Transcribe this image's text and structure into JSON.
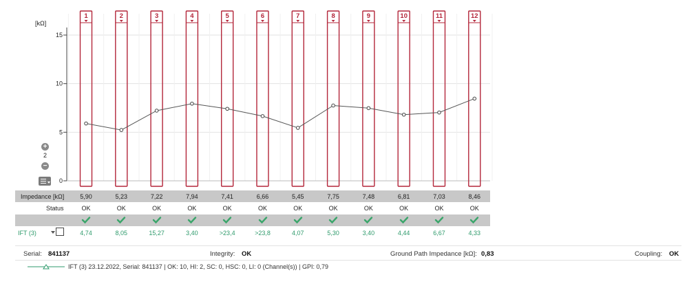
{
  "chart_data": {
    "type": "line",
    "ylabel": "[kΩ]",
    "ylim": [
      0,
      16
    ],
    "yticks": [
      0,
      5,
      10,
      15
    ],
    "categories": [
      "1",
      "2",
      "3",
      "4",
      "5",
      "6",
      "7",
      "8",
      "9",
      "10",
      "11",
      "12"
    ],
    "series": [
      {
        "values": [
          5.9,
          5.23,
          7.22,
          7.94,
          7.41,
          6.66,
          5.45,
          7.75,
          7.48,
          6.81,
          7.03,
          8.46
        ]
      }
    ],
    "grid": true
  },
  "zoom": {
    "level": "2"
  },
  "rows": {
    "impedance": {
      "label": "Impedance [kΩ]",
      "values": [
        "5,90",
        "5,23",
        "7,22",
        "7,94",
        "7,41",
        "6,66",
        "5,45",
        "7,75",
        "7,48",
        "6,81",
        "7,03",
        "8,46"
      ]
    },
    "status": {
      "label": "Status",
      "values": [
        "OK",
        "OK",
        "OK",
        "OK",
        "OK",
        "OK",
        "OK",
        "OK",
        "OK",
        "OK",
        "OK",
        "OK"
      ]
    },
    "ift": {
      "label": "IFT (3)",
      "values": [
        "4,74",
        "8,05",
        "15,27",
        "3,40",
        ">23,4",
        ">23,8",
        "4,07",
        "5,30",
        "3,40",
        "4,44",
        "6,67",
        "4,33"
      ]
    }
  },
  "footer": {
    "serial_label": "Serial:",
    "serial_value": "841137",
    "integrity_label": "Integrity:",
    "integrity_value": "OK",
    "gpi_label": "Ground Path Impedance [kΩ]:",
    "gpi_value": "0,83",
    "coupling_label": "Coupling:",
    "coupling_value": "OK"
  },
  "legend": {
    "text": "IFT (3)  23.12.2022, Serial: 841137 | OK: 10, HI: 2, SC: 0, HSC: 0, LI: 0 (Channel(s)) | GPI: 0,79"
  },
  "colors": {
    "channel": "#b3263a",
    "line": "#555555",
    "ift": "#2e9a6b",
    "check": "#3aa56a"
  }
}
